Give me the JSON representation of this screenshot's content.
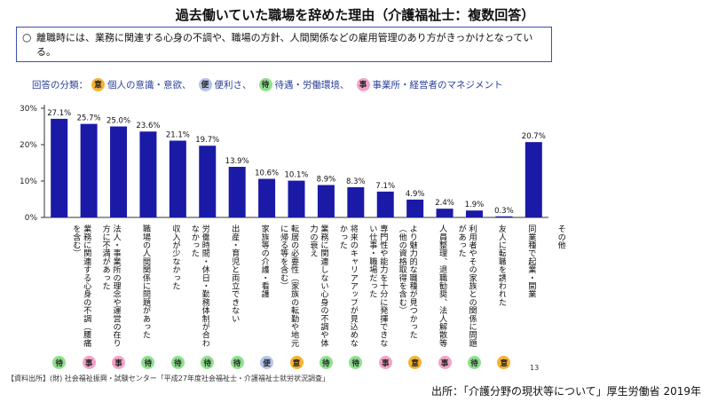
{
  "title": "過去働いていた職場を辞めた理由（介護福祉士：複数回答）",
  "note": {
    "mark": "○",
    "text": "離職時には、業務に関連する心身の不調や、職場の方針、人間関係などの雇用管理のあり方がきっかけとなっている。"
  },
  "legend": {
    "label": "回答の分類：",
    "items": [
      {
        "key": "意",
        "text": "個人の意識・意欲、",
        "color": "#f5b335"
      },
      {
        "key": "便",
        "text": "便利さ、",
        "color": "#b6c3ea"
      },
      {
        "key": "待",
        "text": "待遇・労働環境、",
        "color": "#8fe08f"
      },
      {
        "key": "事",
        "text": "事業所・経営者のマネジメント",
        "color": "#f2a3c8"
      }
    ]
  },
  "chart_data": {
    "type": "bar",
    "categories": [
      "業務に関連する心身の不調（腰痛を含む）",
      "法人・事業所の理念や運営の在り方に不満があった",
      "職場の人間関係に問題があった",
      "収入が少なかった",
      "労働時間・休日・勤務体制が合わなかった",
      "出産・育児と両立できない",
      "家族等の介護・看護",
      "転居の必要性（家族の転勤や地元に帰る等を含む）",
      "業務に関連しない心身の不調や体力の衰え",
      "将来のキャリアアップが見込めなかった",
      "専門性や能力を十分に発揮できない仕事・職場だった",
      "より魅力的な職種が見つかった（他の資格取得を含む）",
      "人員整理、退職勧奨、法人解散等",
      "利用者やその家族との関係に問題があった",
      "友人に転職を誘われた",
      "同業種で起業・開業",
      "その他"
    ],
    "values": [
      27.1,
      25.7,
      25.0,
      23.6,
      21.1,
      19.7,
      13.9,
      10.6,
      10.1,
      8.9,
      8.3,
      7.1,
      4.9,
      2.4,
      1.9,
      0.3,
      20.7
    ],
    "value_labels": [
      "27.1%",
      "25.7%",
      "25.0%",
      "23.6%",
      "21.1%",
      "19.7%",
      "13.9%",
      "10.6%",
      "10.1%",
      "8.9%",
      "8.3%",
      "7.1%",
      "4.9%",
      "2.4%",
      "1.9%",
      "0.3%",
      "20.7%"
    ],
    "category_badges": [
      "待",
      "事",
      "事",
      "待",
      "待",
      "待",
      "待",
      "便",
      "意",
      "待",
      "待",
      "事",
      "意",
      "事",
      "待",
      "意",
      ""
    ],
    "yticks": [
      "0%",
      "10%",
      "20%",
      "30%"
    ],
    "ytick_values": [
      0,
      10,
      20,
      30
    ],
    "ylim": [
      0,
      30
    ],
    "bar_color": "#1a1aa6",
    "grid": false
  },
  "page_number": "13",
  "source_note": "【資料出所】(財) 社会福祉振興・試験センター「平成27年度社会福祉士・介護福祉士就労状況調査」",
  "source": "出所：「介護分野の現状等について」厚生労働省 2019年"
}
